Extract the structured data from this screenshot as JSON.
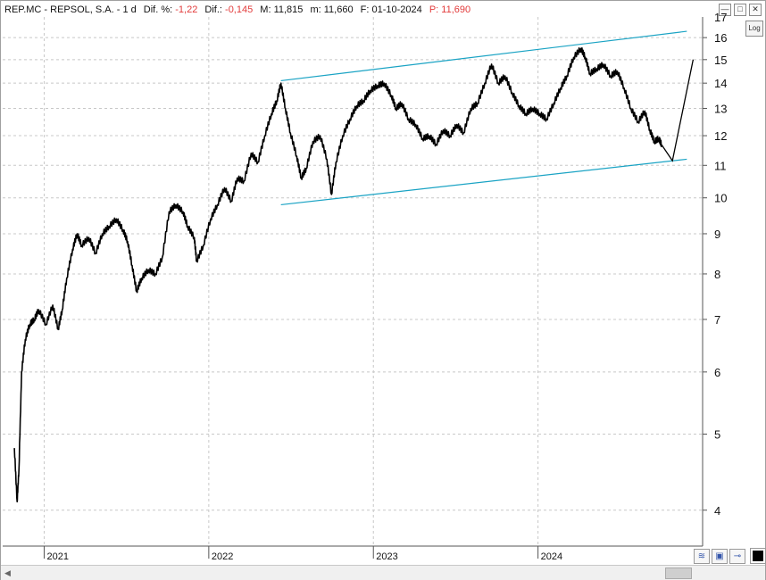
{
  "header": {
    "ticker": "REP.MC - REPSOL, S.A. - 1 d",
    "dif_pct_label": "Dif. %:",
    "dif_pct_value": "-1,22",
    "dif_label": "Dif.:",
    "dif_value": "-0,145",
    "max_label": "M: 11,815",
    "min_label": "m: 11,660",
    "date_label": "F: 01-10-2024",
    "price_label": "P:",
    "price_value": "11,690"
  },
  "controls": {
    "log_label": "Log",
    "minimize": "—",
    "maximize": "□",
    "close": "✕"
  },
  "colors": {
    "price": "#000000",
    "channel": "#1aa3c4",
    "grid": "#c8c8c8",
    "accent_red": "#e23b3b"
  },
  "chart_data": {
    "type": "line",
    "scale": "log",
    "ylim": [
      3.6,
      17
    ],
    "yticks": [
      4,
      5,
      6,
      7,
      8,
      9,
      10,
      11,
      12,
      13,
      14,
      15,
      16
    ],
    "top_tick_partial": "17",
    "xlim": [
      "2020-10-01",
      "2024-12-31"
    ],
    "xticks": [
      {
        "label": "2021",
        "date": "2021-01-01"
      },
      {
        "label": "2022",
        "date": "2022-01-01"
      },
      {
        "label": "2023",
        "date": "2023-01-01"
      },
      {
        "label": "2024",
        "date": "2024-01-01"
      }
    ],
    "grid": true,
    "series": [
      {
        "values": [
          [
            "2020-10-27",
            4.8
          ],
          [
            "2020-11-02",
            4.1
          ],
          [
            "2020-11-06",
            4.5
          ],
          [
            "2020-11-12",
            6.0
          ],
          [
            "2020-11-20",
            6.6
          ],
          [
            "2020-11-30",
            6.9
          ],
          [
            "2020-12-10",
            7.0
          ],
          [
            "2020-12-20",
            7.2
          ],
          [
            "2021-01-05",
            6.9
          ],
          [
            "2021-01-20",
            7.3
          ],
          [
            "2021-02-01",
            6.8
          ],
          [
            "2021-02-10",
            7.2
          ],
          [
            "2021-02-20",
            7.9
          ],
          [
            "2021-03-05",
            8.6
          ],
          [
            "2021-03-15",
            9.0
          ],
          [
            "2021-03-25",
            8.7
          ],
          [
            "2021-04-10",
            8.9
          ],
          [
            "2021-04-25",
            8.5
          ],
          [
            "2021-05-10",
            9.0
          ],
          [
            "2021-05-25",
            9.2
          ],
          [
            "2021-06-10",
            9.4
          ],
          [
            "2021-06-25",
            9.1
          ],
          [
            "2021-07-05",
            8.8
          ],
          [
            "2021-07-15",
            8.2
          ],
          [
            "2021-07-25",
            7.6
          ],
          [
            "2021-08-05",
            7.9
          ],
          [
            "2021-08-20",
            8.1
          ],
          [
            "2021-09-05",
            8.0
          ],
          [
            "2021-09-20",
            8.4
          ],
          [
            "2021-10-05",
            9.6
          ],
          [
            "2021-10-20",
            9.8
          ],
          [
            "2021-11-05",
            9.6
          ],
          [
            "2021-11-15",
            9.2
          ],
          [
            "2021-11-30",
            8.9
          ],
          [
            "2021-12-05",
            8.3
          ],
          [
            "2021-12-20",
            8.7
          ],
          [
            "2022-01-05",
            9.4
          ],
          [
            "2022-01-20",
            9.8
          ],
          [
            "2022-02-05",
            10.3
          ],
          [
            "2022-02-20",
            9.9
          ],
          [
            "2022-03-05",
            10.6
          ],
          [
            "2022-03-20",
            10.5
          ],
          [
            "2022-04-05",
            11.4
          ],
          [
            "2022-04-20",
            11.1
          ],
          [
            "2022-05-05",
            12.0
          ],
          [
            "2022-05-20",
            12.8
          ],
          [
            "2022-06-01",
            13.3
          ],
          [
            "2022-06-10",
            14.0
          ],
          [
            "2022-06-20",
            13.0
          ],
          [
            "2022-07-01",
            12.1
          ],
          [
            "2022-07-15",
            11.3
          ],
          [
            "2022-07-25",
            10.6
          ],
          [
            "2022-08-05",
            10.9
          ],
          [
            "2022-08-20",
            11.8
          ],
          [
            "2022-09-05",
            12.0
          ],
          [
            "2022-09-20",
            11.2
          ],
          [
            "2022-09-30",
            10.1
          ],
          [
            "2022-10-10",
            11.1
          ],
          [
            "2022-10-25",
            12.0
          ],
          [
            "2022-11-10",
            12.6
          ],
          [
            "2022-11-25",
            13.1
          ],
          [
            "2022-12-10",
            13.3
          ],
          [
            "2022-12-25",
            13.7
          ],
          [
            "2023-01-10",
            13.9
          ],
          [
            "2023-01-25",
            14.0
          ],
          [
            "2023-02-10",
            13.5
          ],
          [
            "2023-02-20",
            13.0
          ],
          [
            "2023-03-05",
            13.2
          ],
          [
            "2023-03-20",
            12.6
          ],
          [
            "2023-04-05",
            12.4
          ],
          [
            "2023-04-20",
            11.9
          ],
          [
            "2023-05-05",
            12.0
          ],
          [
            "2023-05-20",
            11.7
          ],
          [
            "2023-06-05",
            12.2
          ],
          [
            "2023-06-20",
            12.0
          ],
          [
            "2023-07-05",
            12.4
          ],
          [
            "2023-07-20",
            12.1
          ],
          [
            "2023-08-05",
            13.0
          ],
          [
            "2023-08-20",
            13.2
          ],
          [
            "2023-09-05",
            14.0
          ],
          [
            "2023-09-20",
            14.8
          ],
          [
            "2023-10-05",
            14.0
          ],
          [
            "2023-10-20",
            14.3
          ],
          [
            "2023-11-05",
            13.6
          ],
          [
            "2023-11-20",
            13.1
          ],
          [
            "2023-12-05",
            12.8
          ],
          [
            "2023-12-20",
            13.0
          ],
          [
            "2024-01-05",
            12.8
          ],
          [
            "2024-01-20",
            12.6
          ],
          [
            "2024-02-05",
            13.2
          ],
          [
            "2024-02-20",
            13.8
          ],
          [
            "2024-03-05",
            14.3
          ],
          [
            "2024-03-20",
            15.1
          ],
          [
            "2024-04-05",
            15.5
          ],
          [
            "2024-04-15",
            15.1
          ],
          [
            "2024-04-25",
            14.4
          ],
          [
            "2024-05-10",
            14.6
          ],
          [
            "2024-05-25",
            14.8
          ],
          [
            "2024-06-10",
            14.3
          ],
          [
            "2024-06-25",
            14.5
          ],
          [
            "2024-07-10",
            13.8
          ],
          [
            "2024-07-25",
            13.0
          ],
          [
            "2024-08-10",
            12.5
          ],
          [
            "2024-08-25",
            12.9
          ],
          [
            "2024-09-05",
            12.2
          ],
          [
            "2024-09-15",
            11.8
          ],
          [
            "2024-09-25",
            11.9
          ],
          [
            "2024-10-01",
            11.69
          ]
        ]
      }
    ],
    "annotations": [
      {
        "kind": "channel_upper",
        "start": [
          "2022-06-10",
          14.1
        ],
        "end": [
          "2024-11-26",
          16.3
        ]
      },
      {
        "kind": "channel_lower",
        "start": [
          "2022-06-10",
          9.8
        ],
        "end": [
          "2024-11-26",
          11.2
        ]
      },
      {
        "kind": "projection",
        "points": [
          [
            "2024-10-01",
            11.69
          ],
          [
            "2024-10-25",
            11.15
          ],
          [
            "2024-12-10",
            15.0
          ]
        ]
      }
    ]
  }
}
